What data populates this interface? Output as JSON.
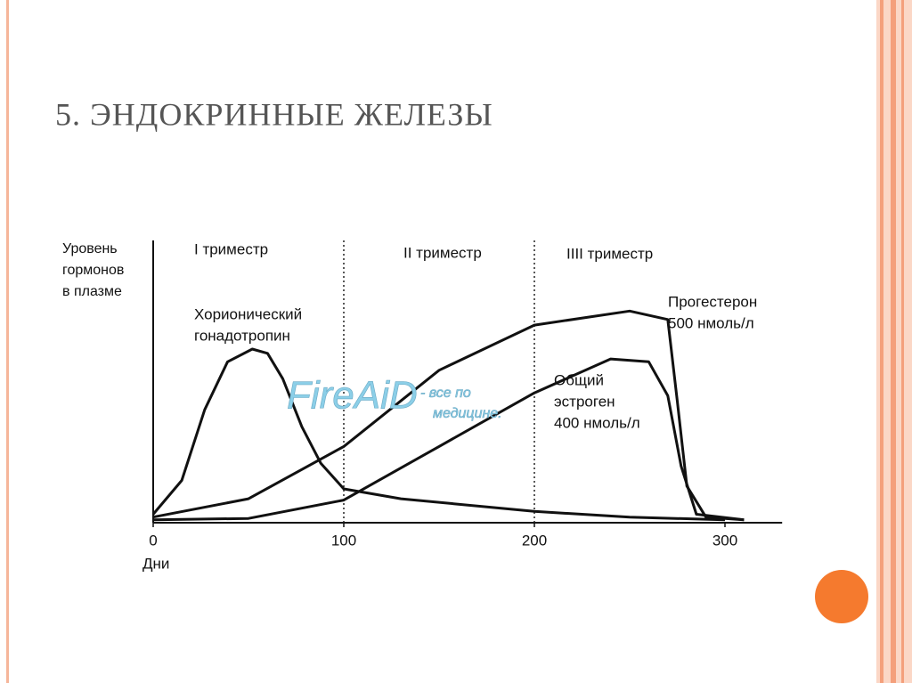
{
  "title": "5. ЭНДОКРИННЫЕ ЖЕЛЕЗЫ",
  "watermark": [
    "FireAiD",
    "- все по",
    "медицине."
  ],
  "chart_data": {
    "type": "line",
    "ylabel": [
      "Уровень",
      "гормонов",
      "в плазме"
    ],
    "xlabel": "Дни",
    "xlim": [
      0,
      330
    ],
    "xticks": [
      0,
      100,
      200,
      300
    ],
    "ylim": [
      0,
      100
    ],
    "dividers": [
      100,
      200
    ],
    "trimesters": [
      "I триместр",
      "II триместр",
      "IIII триместр"
    ],
    "series": [
      {
        "label_lines": [
          "Хорионический",
          "гонадотропин"
        ],
        "color": "#111111",
        "x": [
          0,
          15,
          27,
          39,
          52,
          60,
          68,
          78,
          88,
          100,
          130,
          200,
          250,
          300
        ],
        "values": [
          3,
          15,
          40,
          57,
          61.5,
          60,
          51,
          34,
          21,
          12,
          8.5,
          4,
          2,
          1
        ]
      },
      {
        "label_lines": [
          "Прогестерон",
          "500 нмоль/л"
        ],
        "color": "#111111",
        "x": [
          0,
          50,
          100,
          150,
          200,
          250,
          270,
          275,
          280,
          290,
          310
        ],
        "values": [
          2,
          8.5,
          27,
          54,
          70,
          75,
          72,
          43,
          13,
          2,
          1
        ]
      },
      {
        "label_lines": [
          "Общий",
          "эстроген",
          "400 нмоль/л"
        ],
        "color": "#111111",
        "x": [
          0,
          50,
          100,
          150,
          200,
          240,
          260,
          270,
          277,
          285,
          310
        ],
        "values": [
          1,
          1.5,
          8,
          27,
          46,
          58,
          57,
          45,
          20,
          3,
          1
        ]
      }
    ]
  }
}
